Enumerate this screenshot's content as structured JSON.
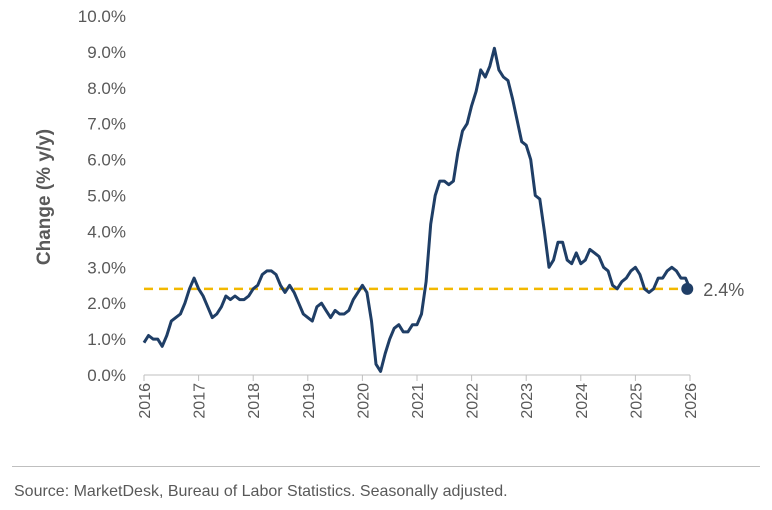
{
  "chart_data": {
    "type": "line",
    "ylabel": "Change (% y/y)",
    "xlabel": "",
    "xlim": [
      2016,
      2026
    ],
    "ylim": [
      0,
      10
    ],
    "y_ticks": [
      "0.0%",
      "1.0%",
      "2.0%",
      "3.0%",
      "4.0%",
      "5.0%",
      "6.0%",
      "7.0%",
      "8.0%",
      "9.0%",
      "10.0%"
    ],
    "x_ticks": [
      "2016",
      "2017",
      "2018",
      "2019",
      "2020",
      "2021",
      "2022",
      "2023",
      "2024",
      "2025",
      "2026"
    ],
    "grid": false,
    "series": [
      {
        "color": "#1f3e66",
        "start": "2016-01",
        "values": [
          0.9,
          1.1,
          1.0,
          1.0,
          0.8,
          1.1,
          1.5,
          1.6,
          1.7,
          2.0,
          2.4,
          2.7,
          2.4,
          2.2,
          1.9,
          1.6,
          1.7,
          1.9,
          2.2,
          2.1,
          2.2,
          2.1,
          2.1,
          2.2,
          2.4,
          2.5,
          2.8,
          2.9,
          2.9,
          2.8,
          2.5,
          2.3,
          2.5,
          2.3,
          2.0,
          1.7,
          1.6,
          1.5,
          1.9,
          2.0,
          1.8,
          1.6,
          1.8,
          1.7,
          1.7,
          1.8,
          2.1,
          2.3,
          2.5,
          2.3,
          1.5,
          0.3,
          0.1,
          0.6,
          1.0,
          1.3,
          1.4,
          1.2,
          1.2,
          1.4,
          1.4,
          1.7,
          2.6,
          4.2,
          5.0,
          5.4,
          5.4,
          5.3,
          5.4,
          6.2,
          6.8,
          7.0,
          7.5,
          7.9,
          8.5,
          8.3,
          8.6,
          9.1,
          8.5,
          8.3,
          8.2,
          7.7,
          7.1,
          6.5,
          6.4,
          6.0,
          5.0,
          4.9,
          4.0,
          3.0,
          3.2,
          3.7,
          3.7,
          3.2,
          3.1,
          3.4,
          3.1,
          3.2,
          3.5,
          3.4,
          3.3,
          3.0,
          2.9,
          2.5,
          2.4,
          2.6,
          2.7,
          2.9,
          3.0,
          2.8,
          2.4,
          2.3,
          2.4,
          2.7,
          2.7,
          2.9,
          3.0,
          2.9,
          2.7,
          2.7,
          2.4
        ],
        "end_point": {
          "year": 2025.95,
          "value": 2.4
        }
      }
    ],
    "reference_line": {
      "value": 2.4,
      "color": "#f2b800",
      "style": "dashed"
    },
    "annotation": "2.4%",
    "source": "Source: MarketDesk, Bureau of Labor Statistics. Seasonally adjusted."
  }
}
